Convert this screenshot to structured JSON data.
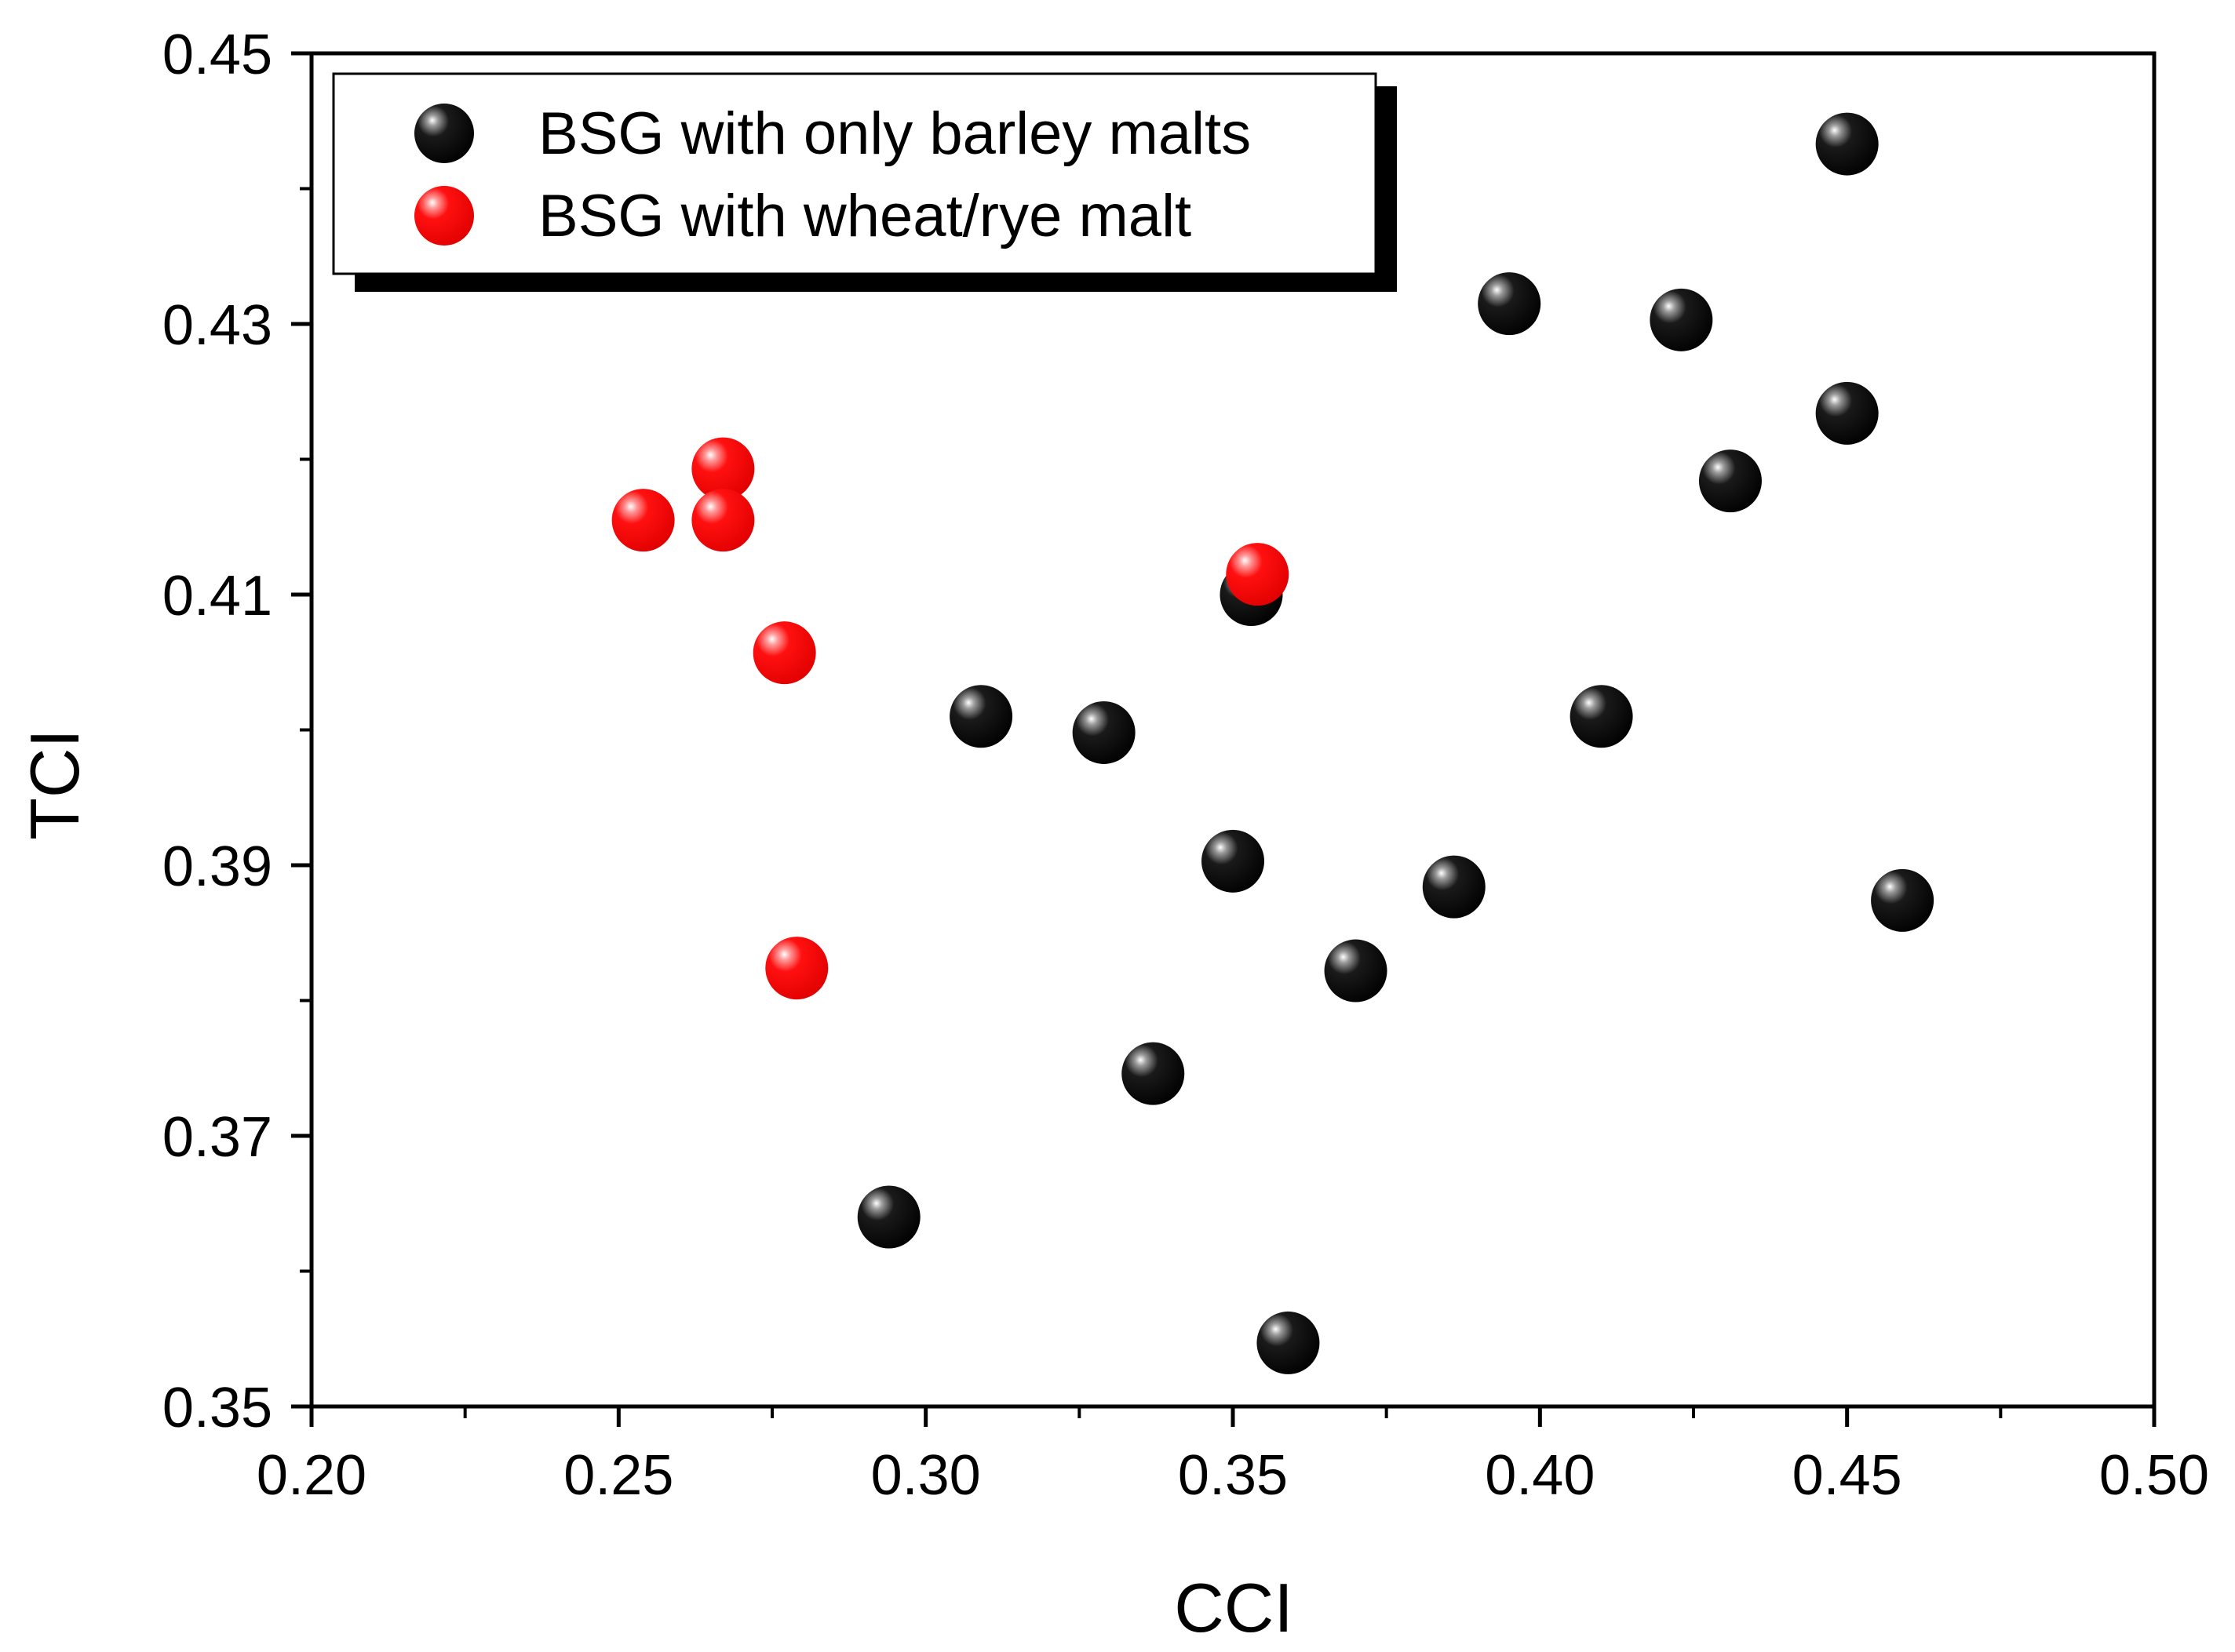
{
  "chart_data": {
    "type": "scatter",
    "xlabel": "CCI",
    "ylabel": "TCI",
    "xlim": [
      0.2,
      0.5
    ],
    "ylim": [
      0.35,
      0.45
    ],
    "x_ticks": [
      "0.20",
      "0.25",
      "0.30",
      "0.35",
      "0.40",
      "0.45",
      "0.50"
    ],
    "y_ticks": [
      "0.35",
      "0.37",
      "0.39",
      "0.41",
      "0.43",
      "0.45"
    ],
    "x_tick_values": [
      0.2,
      0.25,
      0.3,
      0.35,
      0.4,
      0.45,
      0.5
    ],
    "y_tick_values": [
      0.35,
      0.37,
      0.39,
      0.41,
      0.43,
      0.45
    ],
    "x_minor_ticks": [
      0.225,
      0.275,
      0.325,
      0.375,
      0.425,
      0.475
    ],
    "y_minor_ticks": [
      0.36,
      0.38,
      0.4,
      0.42,
      0.44
    ],
    "grid": false,
    "legend_position": "top-left",
    "series": [
      {
        "name": "BSG with only barley malts",
        "color": "#000000",
        "points": [
          {
            "x": 0.45,
            "y": 0.4433
          },
          {
            "x": 0.395,
            "y": 0.4315
          },
          {
            "x": 0.423,
            "y": 0.4303
          },
          {
            "x": 0.45,
            "y": 0.4234
          },
          {
            "x": 0.431,
            "y": 0.4184
          },
          {
            "x": 0.353,
            "y": 0.41
          },
          {
            "x": 0.309,
            "y": 0.401
          },
          {
            "x": 0.329,
            "y": 0.3998
          },
          {
            "x": 0.41,
            "y": 0.401
          },
          {
            "x": 0.35,
            "y": 0.3903
          },
          {
            "x": 0.386,
            "y": 0.3884
          },
          {
            "x": 0.459,
            "y": 0.3874
          },
          {
            "x": 0.37,
            "y": 0.3822
          },
          {
            "x": 0.337,
            "y": 0.3746
          },
          {
            "x": 0.294,
            "y": 0.364
          },
          {
            "x": 0.359,
            "y": 0.3547
          }
        ]
      },
      {
        "name": "BSG with wheat/rye malt",
        "color": "#ff0000",
        "points": [
          {
            "x": 0.267,
            "y": 0.4193
          },
          {
            "x": 0.254,
            "y": 0.4155
          },
          {
            "x": 0.267,
            "y": 0.4155
          },
          {
            "x": 0.354,
            "y": 0.4115
          },
          {
            "x": 0.277,
            "y": 0.4057
          },
          {
            "x": 0.279,
            "y": 0.3824
          }
        ]
      }
    ]
  }
}
